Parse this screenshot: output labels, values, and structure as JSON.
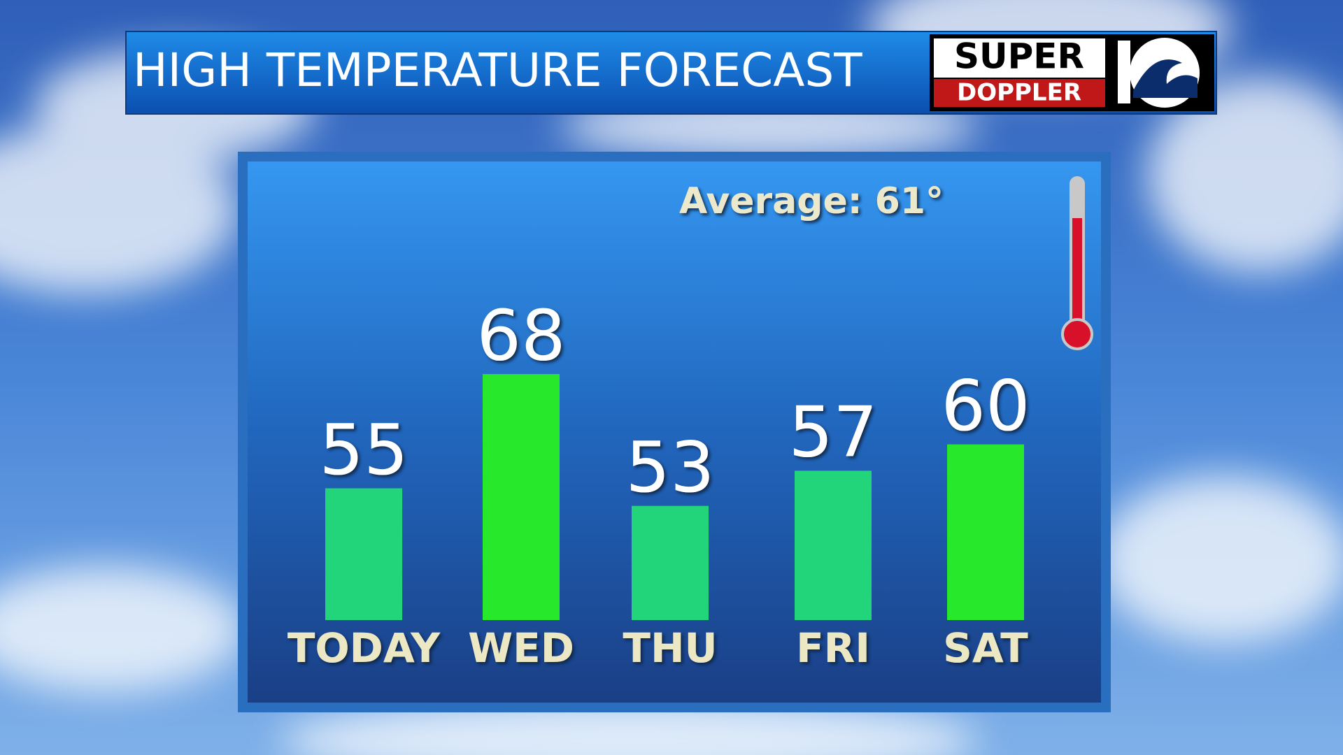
{
  "chart_data": {
    "type": "bar",
    "title": "HIGH TEMPERATURE FORECAST",
    "logo": {
      "top": "SUPER",
      "bottom": "DOPPLER"
    },
    "annotation": "Average: 61°",
    "categories": [
      "TODAY",
      "WED",
      "THU",
      "FRI",
      "SAT"
    ],
    "values": [
      55,
      68,
      53,
      57,
      60
    ],
    "colors": [
      "#22d47a",
      "#27e82a",
      "#22d47a",
      "#22d47a",
      "#27e82a"
    ],
    "ylim": [
      40,
      70
    ]
  }
}
